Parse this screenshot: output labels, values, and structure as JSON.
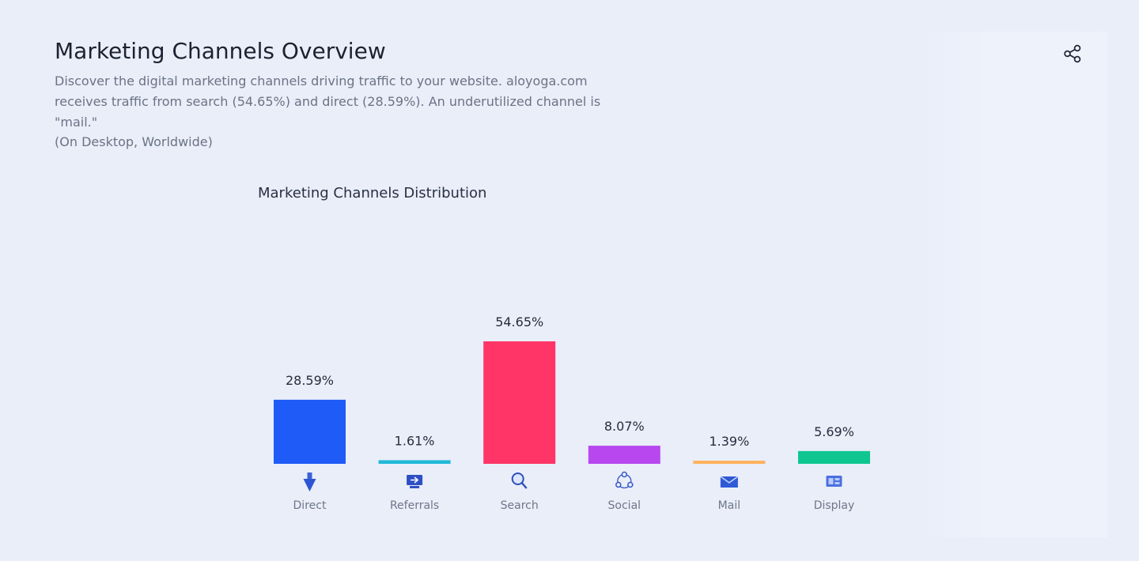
{
  "header": {
    "title": "Marketing Channels Overview",
    "description": "Discover the digital marketing channels driving traffic to your website. aloyoga.com receives traffic from search (54.65%) and direct (28.59%). An underutilized channel is \"mail.\"",
    "scope": "(On Desktop, Worldwide)",
    "share_icon": "share-icon"
  },
  "chart_data": {
    "type": "bar",
    "title": "Marketing Channels Distribution",
    "categories": [
      "Direct",
      "Referrals",
      "Search",
      "Social",
      "Mail",
      "Display"
    ],
    "values": [
      28.59,
      1.61,
      54.65,
      8.07,
      1.39,
      5.69
    ],
    "value_labels": [
      "28.59%",
      "1.61%",
      "54.65%",
      "8.07%",
      "1.39%",
      "5.69%"
    ],
    "colors": [
      "#1f5bf7",
      "#22b8d9",
      "#ff3567",
      "#b847f0",
      "#ffb15c",
      "#0fc690"
    ],
    "icons": [
      "direct-icon",
      "referrals-icon",
      "search-icon",
      "social-icon",
      "mail-icon",
      "display-icon"
    ],
    "unit": "%",
    "ylim": [
      0,
      54.65
    ],
    "xlabel": "",
    "ylabel": "",
    "grid": false,
    "legend": "none"
  }
}
